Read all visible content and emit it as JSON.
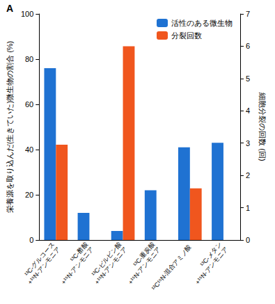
{
  "chart_data": {
    "type": "bar",
    "title": "A",
    "categories": [
      "¹³C-グルコース\n+¹⁵N-アンモニア",
      "¹³C-酢酸\n+¹⁵N-アンモニア",
      "¹³C-ピルビン酸\n+¹⁵N-アンモニア",
      "¹³C-重炭酸\n+¹⁵N-アンモニア",
      "¹³C¹⁵N-混合アミノ酸",
      "¹³C-メタン\n+¹⁵N-アンモニア"
    ],
    "y_label": "栄養源を取り込んだ(生きていた)微生物の割合 (%)",
    "y2_label": "細胞分裂の回数 (回)",
    "series": [
      {
        "name": "活性のある微生物",
        "color": "#1f72d2",
        "values": [
          76,
          12,
          4,
          22,
          41,
          43
        ]
      },
      {
        "name": "分裂回数",
        "color": "#f0561e",
        "axis": "y2",
        "values": [
          2.95,
          0,
          6,
          0,
          1.6,
          0
        ]
      }
    ],
    "ylim": [
      0,
      100
    ],
    "yticks": [
      0,
      20,
      40,
      60,
      80,
      100
    ],
    "y2lim": [
      0,
      7
    ],
    "y2ticks": [
      0,
      1,
      2,
      3,
      4,
      5,
      6,
      7
    ],
    "grid": false,
    "legend": "upper right"
  }
}
